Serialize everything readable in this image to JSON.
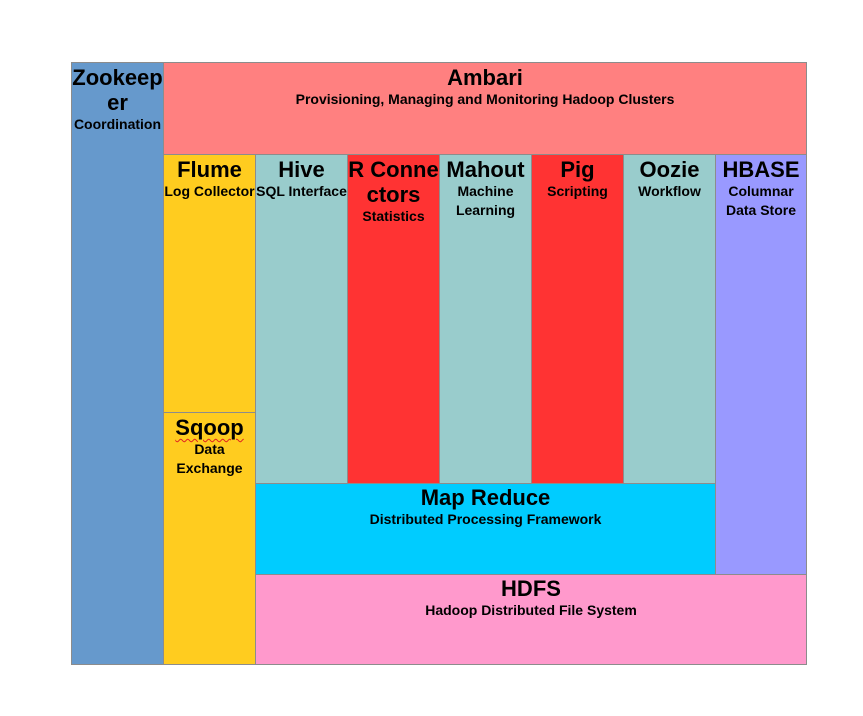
{
  "diagram": {
    "zookeeper": {
      "title": "Zookeeper",
      "subtitle": "Coordination"
    },
    "ambari": {
      "title": "Ambari",
      "subtitle": "Provisioning, Managing and Monitoring Hadoop Clusters"
    },
    "flume": {
      "title": "Flume",
      "subtitle": "Log Collector"
    },
    "sqoop": {
      "title": "Sqoop",
      "subtitle": "Data Exchange"
    },
    "hive": {
      "title": "Hive",
      "subtitle": "SQL Interface"
    },
    "r_connectors": {
      "title": "R Connectors",
      "subtitle": "Statistics"
    },
    "mahout": {
      "title": "Mahout",
      "subtitle": "Machine Learning"
    },
    "pig": {
      "title": "Pig",
      "subtitle": "Scripting"
    },
    "oozie": {
      "title": "Oozie",
      "subtitle": "Workflow"
    },
    "hbase": {
      "title": "HBASE",
      "subtitle": "Columnar Data Store"
    },
    "mapreduce": {
      "title": "Map Reduce",
      "subtitle": "Distributed Processing Framework"
    },
    "hdfs": {
      "title": "HDFS",
      "subtitle": "Hadoop Distributed File System"
    }
  },
  "colors": {
    "zookeeper": "#6699cc",
    "ambari": "#ff8080",
    "flume_sqoop": "#ffcc1f",
    "hive_mahout_oozie": "#99cccc",
    "r_pig": "#ff3333",
    "hbase": "#9999ff",
    "mapreduce": "#00ccff",
    "hdfs": "#ff99cc"
  }
}
